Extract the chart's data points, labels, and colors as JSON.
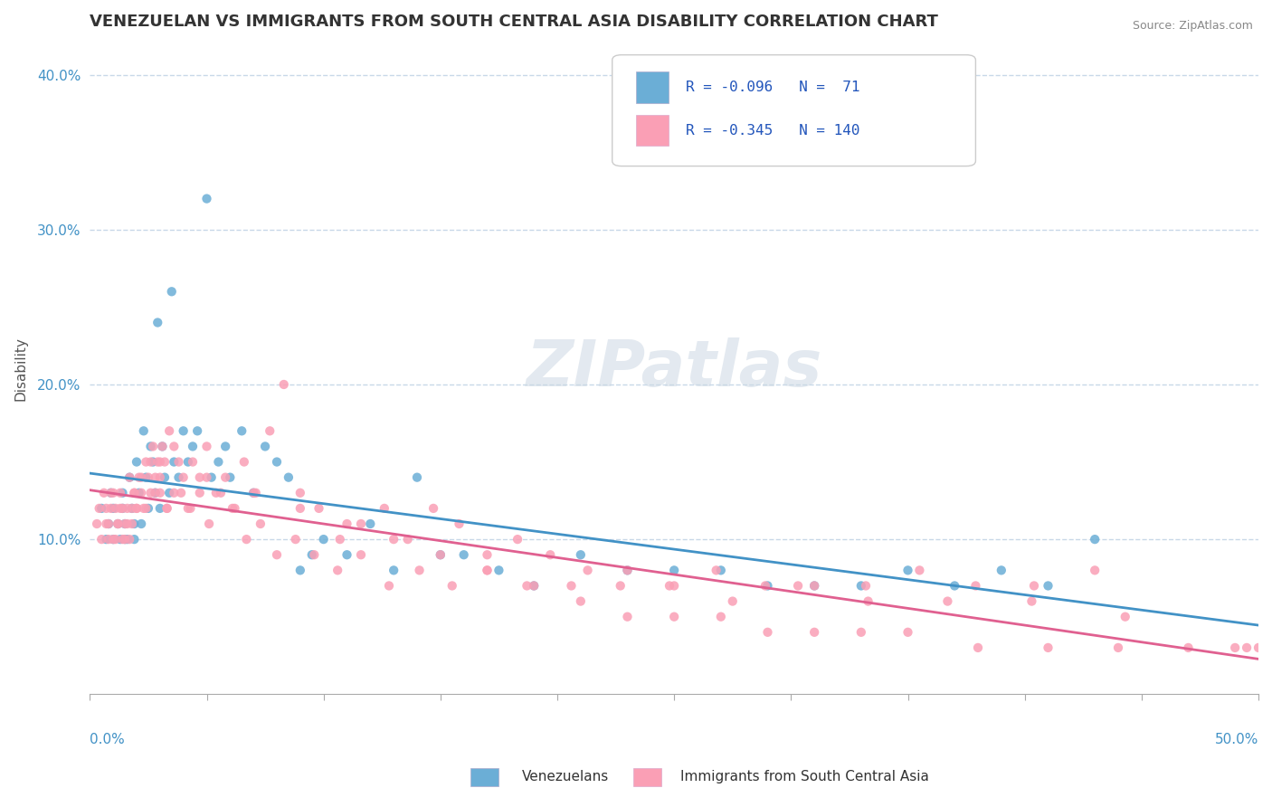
{
  "title": "VENEZUELAN VS IMMIGRANTS FROM SOUTH CENTRAL ASIA DISABILITY CORRELATION CHART",
  "source": "Source: ZipAtlas.com",
  "ylabel": "Disability",
  "xlim": [
    0.0,
    0.5
  ],
  "ylim": [
    0.0,
    0.42
  ],
  "yticks": [
    0.1,
    0.2,
    0.3,
    0.4
  ],
  "ytick_labels": [
    "10.0%",
    "20.0%",
    "30.0%",
    "40.0%"
  ],
  "legend_R1": "-0.096",
  "legend_N1": "71",
  "legend_R2": "-0.345",
  "legend_N2": "140",
  "blue_color": "#6baed6",
  "pink_color": "#fa9fb5",
  "trend_blue": "#4292c6",
  "trend_pink": "#e06090",
  "blue_scatter_x": [
    0.005,
    0.007,
    0.008,
    0.009,
    0.01,
    0.01,
    0.012,
    0.013,
    0.014,
    0.014,
    0.015,
    0.015,
    0.016,
    0.017,
    0.018,
    0.019,
    0.019,
    0.02,
    0.021,
    0.022,
    0.023,
    0.024,
    0.025,
    0.026,
    0.027,
    0.028,
    0.029,
    0.03,
    0.031,
    0.032,
    0.034,
    0.035,
    0.036,
    0.038,
    0.04,
    0.042,
    0.044,
    0.046,
    0.05,
    0.052,
    0.055,
    0.058,
    0.06,
    0.065,
    0.07,
    0.075,
    0.08,
    0.085,
    0.09,
    0.095,
    0.1,
    0.11,
    0.12,
    0.13,
    0.14,
    0.15,
    0.16,
    0.175,
    0.19,
    0.21,
    0.23,
    0.25,
    0.27,
    0.29,
    0.31,
    0.33,
    0.35,
    0.37,
    0.39,
    0.41,
    0.43
  ],
  "blue_scatter_y": [
    0.12,
    0.1,
    0.11,
    0.13,
    0.1,
    0.12,
    0.11,
    0.1,
    0.13,
    0.12,
    0.1,
    0.11,
    0.1,
    0.14,
    0.12,
    0.1,
    0.11,
    0.15,
    0.13,
    0.11,
    0.17,
    0.14,
    0.12,
    0.16,
    0.15,
    0.13,
    0.24,
    0.12,
    0.16,
    0.14,
    0.13,
    0.26,
    0.15,
    0.14,
    0.17,
    0.15,
    0.16,
    0.17,
    0.32,
    0.14,
    0.15,
    0.16,
    0.14,
    0.17,
    0.13,
    0.16,
    0.15,
    0.14,
    0.08,
    0.09,
    0.1,
    0.09,
    0.11,
    0.08,
    0.14,
    0.09,
    0.09,
    0.08,
    0.07,
    0.09,
    0.08,
    0.08,
    0.08,
    0.07,
    0.07,
    0.07,
    0.08,
    0.07,
    0.08,
    0.07,
    0.1
  ],
  "pink_scatter_x": [
    0.003,
    0.004,
    0.005,
    0.006,
    0.007,
    0.008,
    0.009,
    0.01,
    0.011,
    0.012,
    0.013,
    0.014,
    0.015,
    0.016,
    0.017,
    0.018,
    0.019,
    0.02,
    0.021,
    0.022,
    0.023,
    0.024,
    0.025,
    0.026,
    0.027,
    0.028,
    0.029,
    0.03,
    0.031,
    0.032,
    0.033,
    0.034,
    0.036,
    0.038,
    0.04,
    0.042,
    0.044,
    0.047,
    0.05,
    0.054,
    0.058,
    0.062,
    0.066,
    0.071,
    0.077,
    0.083,
    0.09,
    0.098,
    0.107,
    0.116,
    0.126,
    0.136,
    0.147,
    0.158,
    0.17,
    0.183,
    0.197,
    0.213,
    0.23,
    0.248,
    0.268,
    0.289,
    0.31,
    0.332,
    0.355,
    0.379,
    0.404,
    0.43,
    0.007,
    0.008,
    0.009,
    0.01,
    0.011,
    0.012,
    0.013,
    0.014,
    0.015,
    0.016,
    0.017,
    0.018,
    0.019,
    0.02,
    0.022,
    0.024,
    0.026,
    0.028,
    0.03,
    0.033,
    0.036,
    0.039,
    0.043,
    0.047,
    0.051,
    0.056,
    0.061,
    0.067,
    0.073,
    0.08,
    0.088,
    0.096,
    0.106,
    0.116,
    0.128,
    0.141,
    0.155,
    0.17,
    0.187,
    0.206,
    0.227,
    0.25,
    0.275,
    0.303,
    0.333,
    0.367,
    0.403,
    0.443,
    0.03,
    0.05,
    0.07,
    0.09,
    0.11,
    0.13,
    0.15,
    0.17,
    0.19,
    0.21,
    0.23,
    0.25,
    0.27,
    0.29,
    0.31,
    0.33,
    0.35,
    0.38,
    0.41,
    0.44,
    0.47,
    0.49,
    0.495,
    0.5
  ],
  "pink_scatter_y": [
    0.11,
    0.12,
    0.1,
    0.13,
    0.11,
    0.1,
    0.12,
    0.13,
    0.1,
    0.11,
    0.12,
    0.1,
    0.11,
    0.12,
    0.1,
    0.11,
    0.13,
    0.12,
    0.14,
    0.13,
    0.12,
    0.15,
    0.14,
    0.13,
    0.16,
    0.14,
    0.15,
    0.13,
    0.16,
    0.15,
    0.12,
    0.17,
    0.13,
    0.15,
    0.14,
    0.12,
    0.15,
    0.13,
    0.16,
    0.13,
    0.14,
    0.12,
    0.15,
    0.13,
    0.17,
    0.2,
    0.13,
    0.12,
    0.1,
    0.11,
    0.12,
    0.1,
    0.12,
    0.11,
    0.09,
    0.1,
    0.09,
    0.08,
    0.08,
    0.07,
    0.08,
    0.07,
    0.07,
    0.07,
    0.08,
    0.07,
    0.07,
    0.08,
    0.12,
    0.11,
    0.13,
    0.1,
    0.12,
    0.11,
    0.13,
    0.12,
    0.1,
    0.11,
    0.14,
    0.12,
    0.13,
    0.12,
    0.14,
    0.12,
    0.15,
    0.13,
    0.14,
    0.12,
    0.16,
    0.13,
    0.12,
    0.14,
    0.11,
    0.13,
    0.12,
    0.1,
    0.11,
    0.09,
    0.1,
    0.09,
    0.08,
    0.09,
    0.07,
    0.08,
    0.07,
    0.08,
    0.07,
    0.07,
    0.07,
    0.07,
    0.06,
    0.07,
    0.06,
    0.06,
    0.06,
    0.05,
    0.15,
    0.14,
    0.13,
    0.12,
    0.11,
    0.1,
    0.09,
    0.08,
    0.07,
    0.06,
    0.05,
    0.05,
    0.05,
    0.04,
    0.04,
    0.04,
    0.04,
    0.03,
    0.03,
    0.03,
    0.03,
    0.03,
    0.03,
    0.03
  ]
}
